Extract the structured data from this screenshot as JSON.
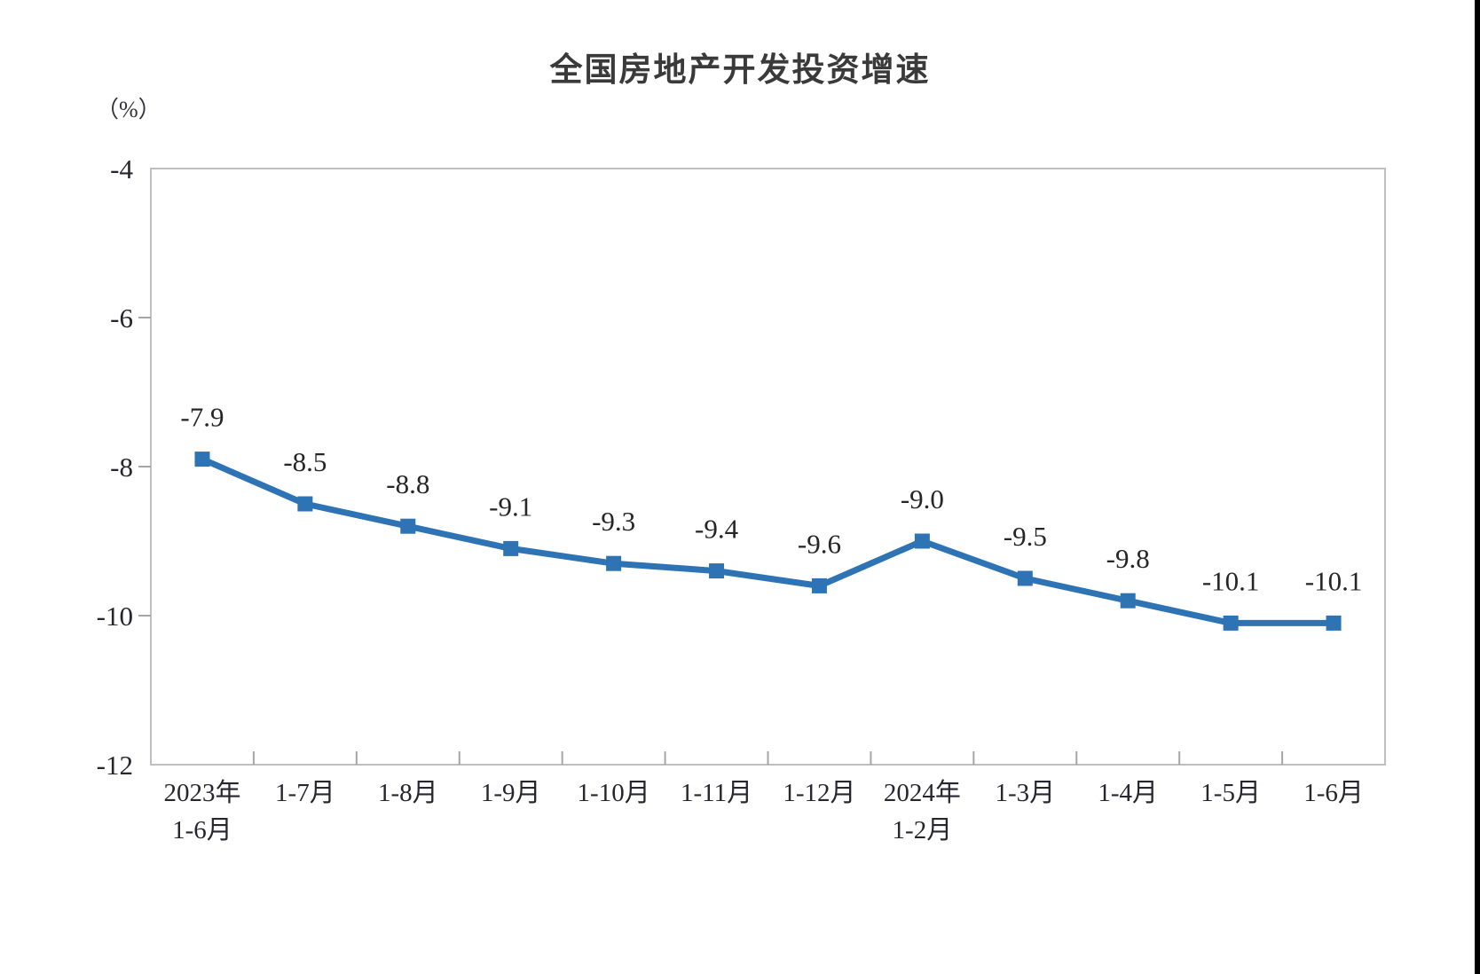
{
  "chart_data": {
    "type": "line",
    "title": "全国房地产开发投资增速",
    "unit_label": "（%）",
    "categories": [
      [
        "2023年",
        "1-6月"
      ],
      [
        "1-7月"
      ],
      [
        "1-8月"
      ],
      [
        "1-9月"
      ],
      [
        "1-10月"
      ],
      [
        "1-11月"
      ],
      [
        "1-12月"
      ],
      [
        "2024年",
        "1-2月"
      ],
      [
        "1-3月"
      ],
      [
        "1-4月"
      ],
      [
        "1-5月"
      ],
      [
        "1-6月"
      ]
    ],
    "values": [
      -7.9,
      -8.5,
      -8.8,
      -9.1,
      -9.3,
      -9.4,
      -9.6,
      -9.0,
      -9.5,
      -9.8,
      -10.1,
      -10.1
    ],
    "point_labels": [
      "-7.9",
      "-8.5",
      "-8.8",
      "-9.1",
      "-9.3",
      "-9.4",
      "-9.6",
      "-9.0",
      "-9.5",
      "-9.8",
      "-10.1",
      "-10.1"
    ],
    "xlabel": "",
    "ylabel": "（%）",
    "ylim": [
      -12,
      -4
    ],
    "yticks": [
      -4,
      -6,
      -8,
      -10,
      -12
    ],
    "ytick_labels": [
      "-4",
      "-6",
      "-8",
      "-10",
      "-12"
    ],
    "grid": false,
    "legend": "none",
    "marker_shape": "square",
    "colors": {
      "line": "#2E74B5",
      "marker": "#2E74B5",
      "plot_border": "#BFBFBF",
      "tick_mark": "#A6A6A6",
      "data_label": "#262626",
      "axis_label": "#26262E",
      "title": "#3A3A3A",
      "edge_bar": "#000000"
    }
  }
}
